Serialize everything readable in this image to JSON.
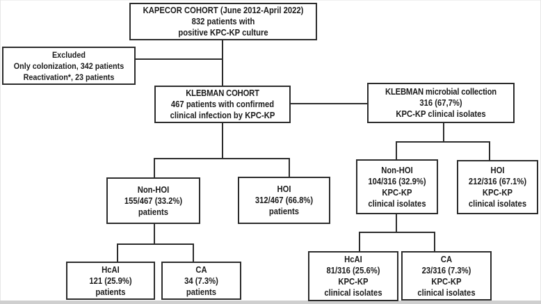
{
  "figure": {
    "type": "flowchart",
    "description": "KAPECOR / KLEBMAN cohort patient and isolate flow diagram"
  },
  "boxes": {
    "kapecor": {
      "lines": [
        "KAPECOR COHORT (June 2012-April 2022)",
        "832 patients with",
        "positive KPC-KP culture"
      ]
    },
    "excluded": {
      "lines": [
        "Excluded",
        "Only colonization, 342 patients",
        "Reactivation*, 23 patients"
      ]
    },
    "klebman_cohort": {
      "title": "KLEBMAN COHORT",
      "lines": [
        "467 patients with confirmed",
        "clinical infection by KPC-KP"
      ]
    },
    "klebman_microbial": {
      "title": "KLEBMAN microbial collection",
      "lines": [
        "316 (67,7%)",
        "KPC-KP clinical isolates"
      ]
    },
    "non_hoi_patients": {
      "lines": [
        "Non-HOI",
        "155/467 (33.2%)",
        "patients"
      ]
    },
    "hoi_patients": {
      "lines": [
        "HOI",
        "312/467 (66.8%)",
        "patients"
      ]
    },
    "non_hoi_isolates": {
      "lines": [
        "Non-HOI",
        "104/316 (32.9%)",
        "KPC-KP",
        "clinical isolates"
      ]
    },
    "hoi_isolates": {
      "lines": [
        "HOI",
        "212/316 (67.1%)",
        "KPC-KP",
        "clinical isolates"
      ]
    },
    "hcai_patients": {
      "lines": [
        "HcAI",
        "121 (25.9%)",
        "patients"
      ]
    },
    "ca_patients": {
      "lines": [
        "CA",
        "34 (7.3%)",
        "patients"
      ]
    },
    "hcai_isolates": {
      "lines": [
        "HcAI",
        "81/316 (25.6%)",
        "KPC-KP",
        "clinical isolates"
      ]
    },
    "ca_isolates": {
      "lines": [
        "CA",
        "23/316 (7.3%)",
        "KPC-KP",
        "clinical isolates"
      ]
    }
  },
  "colors": {
    "border": "#2b2b2b",
    "text": "#1b1b1b",
    "background": "#ffffff",
    "frame": "#cfcfcf"
  }
}
